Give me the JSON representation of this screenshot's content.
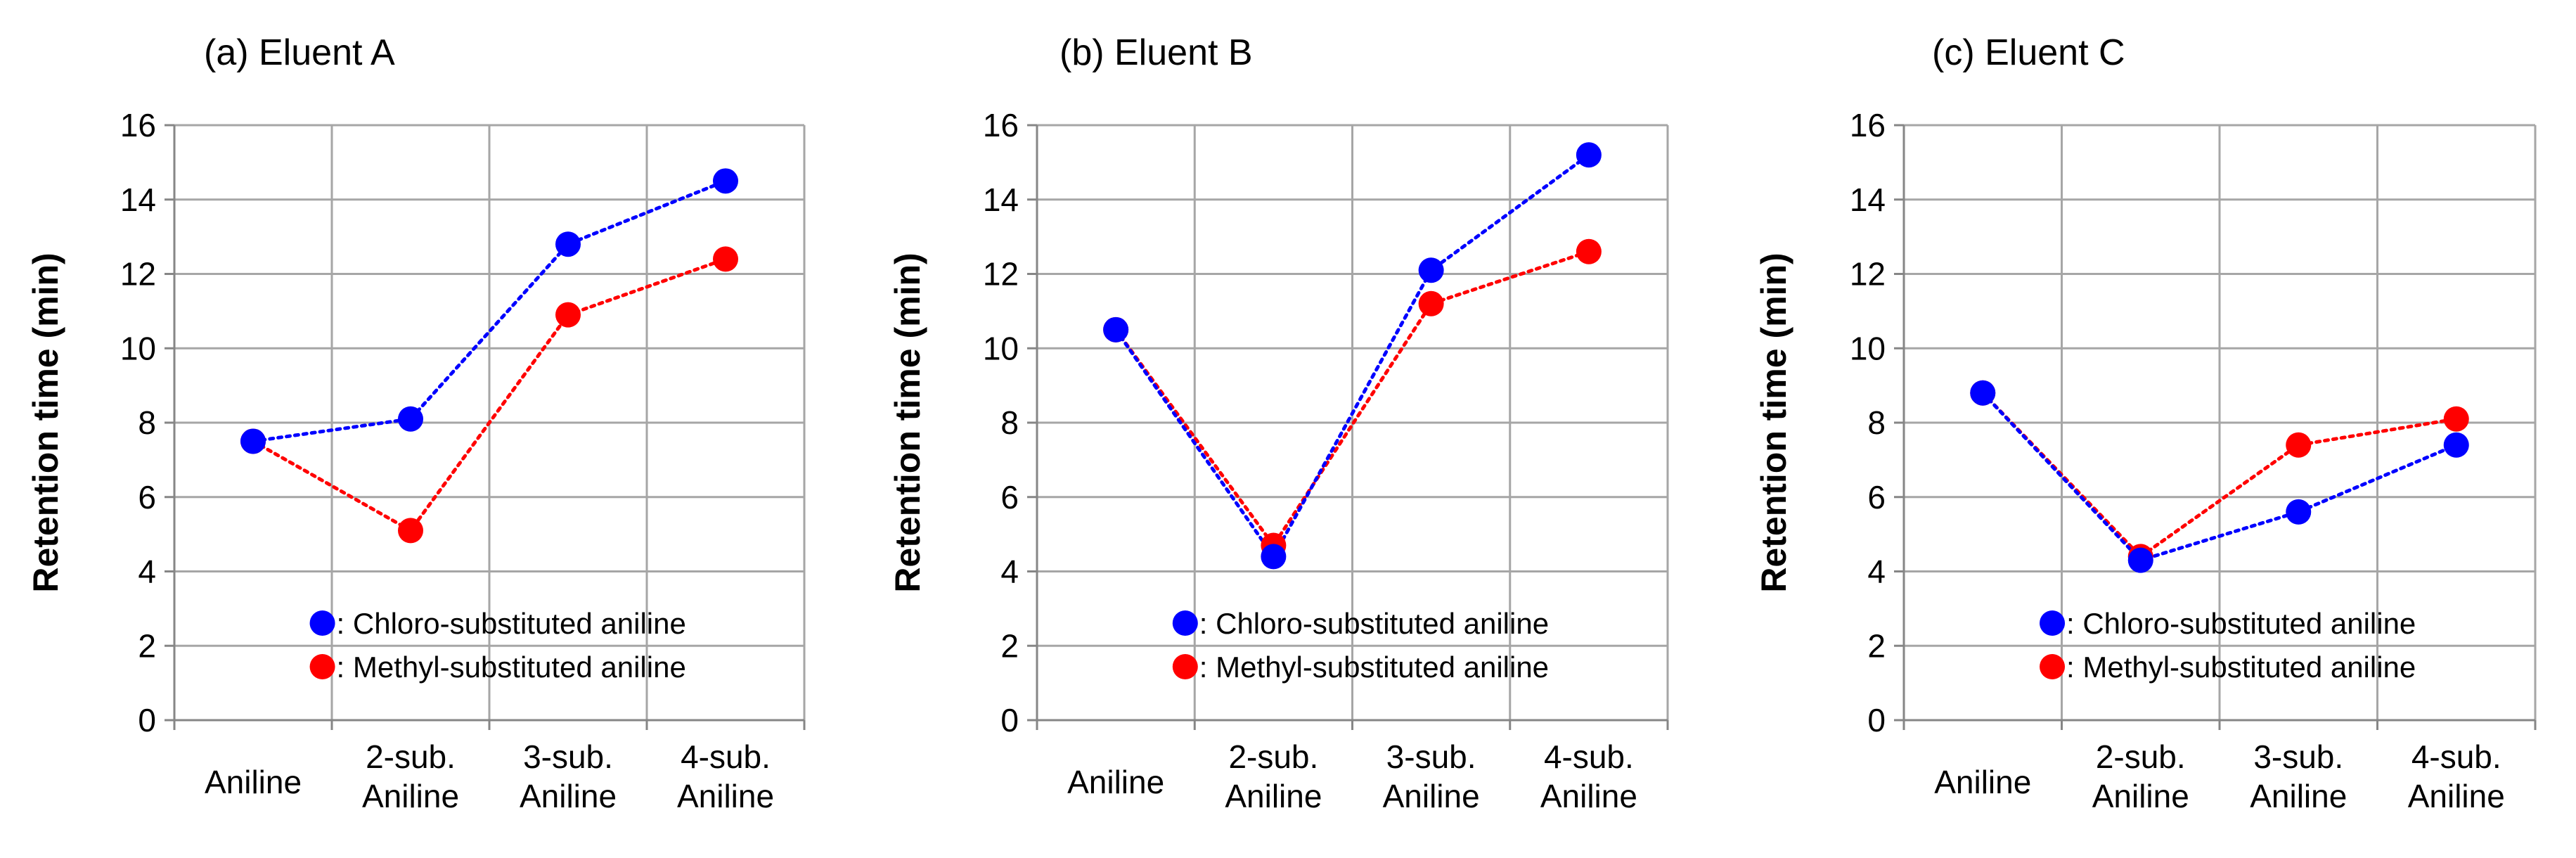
{
  "chart_data": [
    {
      "type": "line",
      "title": "(a) Eluent A",
      "xlabel": "",
      "ylabel": "Retention time (min)",
      "categories": [
        [
          "Aniline"
        ],
        [
          "2-sub.",
          "Aniline"
        ],
        [
          "3-sub.",
          "Aniline"
        ],
        [
          "4-sub.",
          "Aniline"
        ]
      ],
      "ylim": [
        0,
        16
      ],
      "yticks": [
        "0",
        "2",
        "4",
        "6",
        "8",
        "10",
        "12",
        "14",
        "16"
      ],
      "grid": true,
      "legend_position": "bottom-right",
      "series": [
        {
          "name": ": Chloro-substituted aniline",
          "color": "#0000ff",
          "values": [
            7.5,
            8.1,
            12.8,
            14.5
          ]
        },
        {
          "name": ": Methyl-substituted aniline",
          "color": "#ff0000",
          "values": [
            7.5,
            5.1,
            10.9,
            12.4
          ]
        }
      ]
    },
    {
      "type": "line",
      "title": "(b) Eluent B",
      "xlabel": "",
      "ylabel": "Retention time (min)",
      "categories": [
        [
          "Aniline"
        ],
        [
          "2-sub.",
          "Aniline"
        ],
        [
          "3-sub.",
          "Aniline"
        ],
        [
          "4-sub.",
          "Aniline"
        ]
      ],
      "ylim": [
        0,
        16
      ],
      "yticks": [
        "0",
        "2",
        "4",
        "6",
        "8",
        "10",
        "12",
        "14",
        "16"
      ],
      "grid": true,
      "legend_position": "bottom-right",
      "series": [
        {
          "name": ": Chloro-substituted aniline",
          "color": "#0000ff",
          "values": [
            10.5,
            4.4,
            12.1,
            15.2
          ]
        },
        {
          "name": ": Methyl-substituted aniline",
          "color": "#ff0000",
          "values": [
            10.5,
            4.7,
            11.2,
            12.6
          ]
        }
      ]
    },
    {
      "type": "line",
      "title": "(c) Eluent C",
      "xlabel": "",
      "ylabel": "Retention time (min)",
      "categories": [
        [
          "Aniline"
        ],
        [
          "2-sub.",
          "Aniline"
        ],
        [
          "3-sub.",
          "Aniline"
        ],
        [
          "4-sub.",
          "Aniline"
        ]
      ],
      "ylim": [
        0,
        16
      ],
      "yticks": [
        "0",
        "2",
        "4",
        "6",
        "8",
        "10",
        "12",
        "14",
        "16"
      ],
      "grid": true,
      "legend_position": "bottom-right",
      "series": [
        {
          "name": ": Chloro-substituted aniline",
          "color": "#0000ff",
          "values": [
            8.8,
            4.3,
            5.6,
            7.4
          ]
        },
        {
          "name": ": Methyl-substituted aniline",
          "color": "#ff0000",
          "values": [
            8.8,
            4.4,
            7.4,
            8.1
          ]
        }
      ]
    }
  ]
}
